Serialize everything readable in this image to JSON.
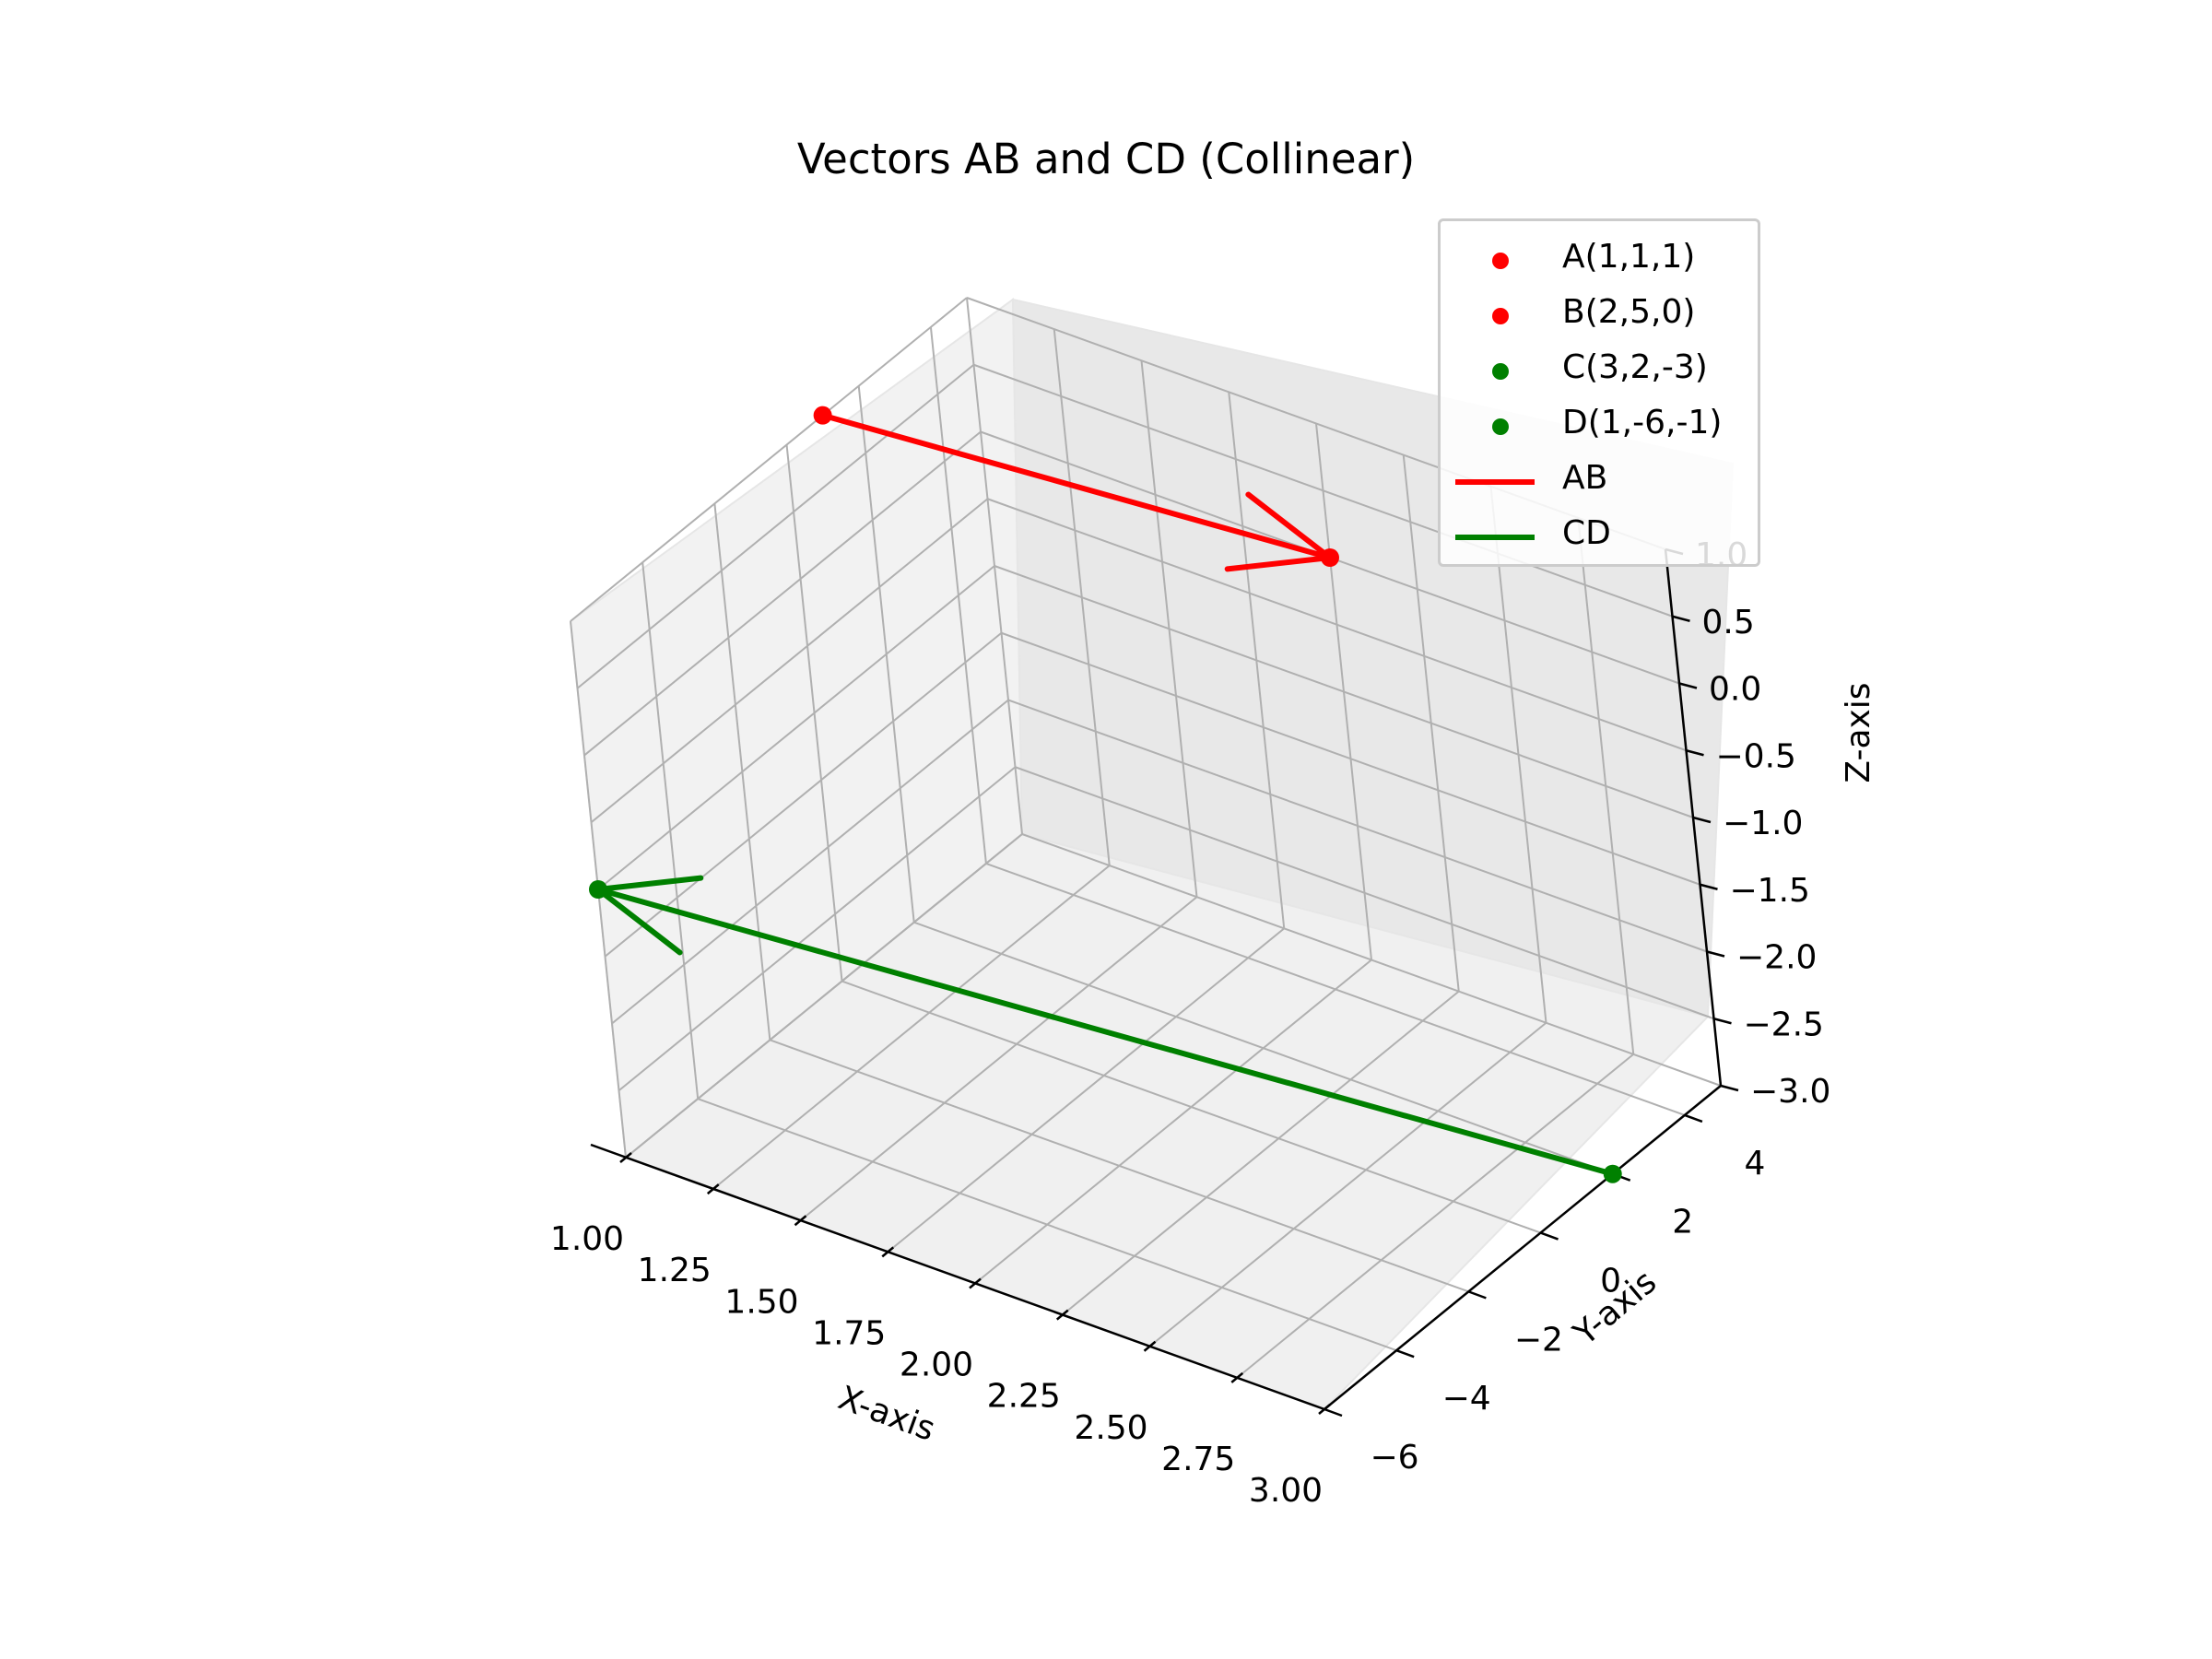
{
  "chart_data": {
    "type": "scatter",
    "title": "Vectors AB and CD (Collinear)",
    "xlabel": "X-axis",
    "ylabel": "Y-axis",
    "zlabel": "Z-axis",
    "xlim": [
      1.0,
      3.0
    ],
    "ylim": [
      -6,
      5
    ],
    "zlim": [
      -3,
      1
    ],
    "xticks": [
      "1.00",
      "1.25",
      "1.50",
      "1.75",
      "2.00",
      "2.25",
      "2.50",
      "2.75",
      "3.00"
    ],
    "yticks": [
      "−6",
      "−4",
      "−2",
      "0",
      "2",
      "4"
    ],
    "zticks": [
      "1.0",
      "0.5",
      "0.0",
      "−0.5",
      "−1.0",
      "−1.5",
      "−2.0",
      "−2.5",
      "−3.0"
    ],
    "grid": true,
    "legend_position": "top-right",
    "points": [
      {
        "label": "A(1,1,1)",
        "x": 1,
        "y": 1,
        "z": 1,
        "color": "#ff0000"
      },
      {
        "label": "B(2,5,0)",
        "x": 2,
        "y": 5,
        "z": 0,
        "color": "#ff0000"
      },
      {
        "label": "C(3,2,-3)",
        "x": 3,
        "y": 2,
        "z": -3,
        "color": "#008000"
      },
      {
        "label": "D(1,-6,-1)",
        "x": 1,
        "y": -6,
        "z": -1,
        "color": "#008000"
      }
    ],
    "vectors": [
      {
        "name": "AB",
        "from": "A",
        "to": "B",
        "color": "#ff0000"
      },
      {
        "name": "CD",
        "from": "C",
        "to": "D",
        "color": "#008000"
      }
    ]
  }
}
